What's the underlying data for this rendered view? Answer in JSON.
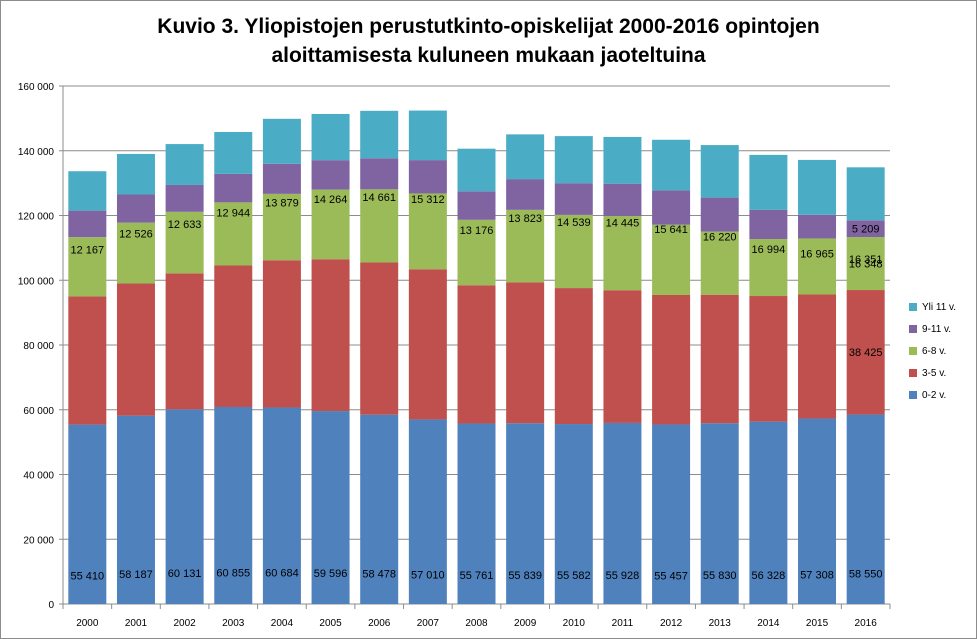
{
  "chart_data": {
    "type": "bar",
    "stacked": true,
    "title": "Kuvio 3. Yliopistojen perustutkinto-opiskelijat 2000-2016  opintojen aloittamisesta kuluneen mukaan jaoteltuina",
    "title_lines": [
      "Kuvio 3. Yliopistojen perustutkinto-opiskelijat 2000-2016  opintojen",
      "aloittamisesta kuluneen mukaan jaoteltuina"
    ],
    "xlabel": "",
    "ylabel": "",
    "ylim": [
      0,
      160000
    ],
    "yticks": [
      0,
      20000,
      40000,
      60000,
      80000,
      100000,
      120000,
      140000,
      160000
    ],
    "ytick_labels": [
      "0",
      "20 000",
      "40 000",
      "60 000",
      "80 000",
      "100 000",
      "120 000",
      "140 000",
      "160 000"
    ],
    "gridlines": true,
    "legend_position": "right",
    "categories": [
      "2000",
      "2001",
      "2002",
      "2003",
      "2004",
      "2005",
      "2006",
      "2007",
      "2008",
      "2009",
      "2010",
      "2011",
      "2012",
      "2013",
      "2014",
      "2015",
      "2016"
    ],
    "series": [
      {
        "name": "0-2 v.",
        "color": "#4f81bd",
        "values": [
          55410,
          58187,
          60131,
          60855,
          60684,
          59596,
          58478,
          57010,
          55761,
          55839,
          55582,
          55928,
          55457,
          55830,
          56328,
          57308,
          58550
        ],
        "labels": [
          "55 410",
          "58 187",
          "60 131",
          "60 855",
          "60 684",
          "59 596",
          "58 478",
          "57 010",
          "55 761",
          "55 839",
          "55 582",
          "55 928",
          "55 457",
          "55 830",
          "56 328",
          "57 308",
          "58 550"
        ]
      },
      {
        "name": "3-5 v.",
        "color": "#c0504d",
        "values": [
          39600,
          40800,
          42000,
          43700,
          45500,
          46900,
          47000,
          46400,
          42700,
          43500,
          42000,
          41000,
          40000,
          39700,
          38800,
          38300,
          38425
        ],
        "labels": [
          "",
          "",
          "",
          "",
          "",
          "",
          "",
          "",
          "",
          "",
          "",
          "",
          "",
          "",
          "",
          "",
          "38 425"
        ]
      },
      {
        "name": "6-8 v.",
        "color": "#9bbb59",
        "values": [
          18300,
          18800,
          19000,
          19500,
          20500,
          21500,
          22600,
          23400,
          20200,
          22400,
          22600,
          22900,
          21700,
          19500,
          17600,
          17300,
          16348
        ],
        "labels": [
          "",
          "",
          "",
          "",
          "",
          "",
          "",
          "",
          "",
          "",
          "",
          "",
          "",
          "",
          "",
          "",
          "16 348"
        ]
      },
      {
        "name": "9-11 v.",
        "color": "#8064a2",
        "values": [
          8200,
          8700,
          8300,
          8800,
          9300,
          9100,
          9600,
          10300,
          8800,
          9500,
          9800,
          10000,
          10600,
          10500,
          9000,
          7300,
          5209
        ],
        "labels": [
          "",
          "",
          "",
          "",
          "",
          "",
          "",
          "",
          "",
          "",
          "",
          "",
          "",
          "",
          "",
          "",
          "5 209"
        ]
      },
      {
        "name": "Yli 11 v.",
        "color": "#4bacc6",
        "values": [
          12167,
          12526,
          12633,
          12944,
          13879,
          14264,
          14661,
          15312,
          13176,
          13823,
          14539,
          14445,
          15641,
          16220,
          16994,
          16965,
          16351
        ],
        "labels": [
          "12 167",
          "12 526",
          "12 633",
          "12 944",
          "13 879",
          "14 264",
          "14 661",
          "15 312",
          "13 176",
          "13 823",
          "14 539",
          "14 445",
          "15 641",
          "16 220",
          "16 994",
          "16 965",
          "16 351"
        ]
      }
    ]
  }
}
